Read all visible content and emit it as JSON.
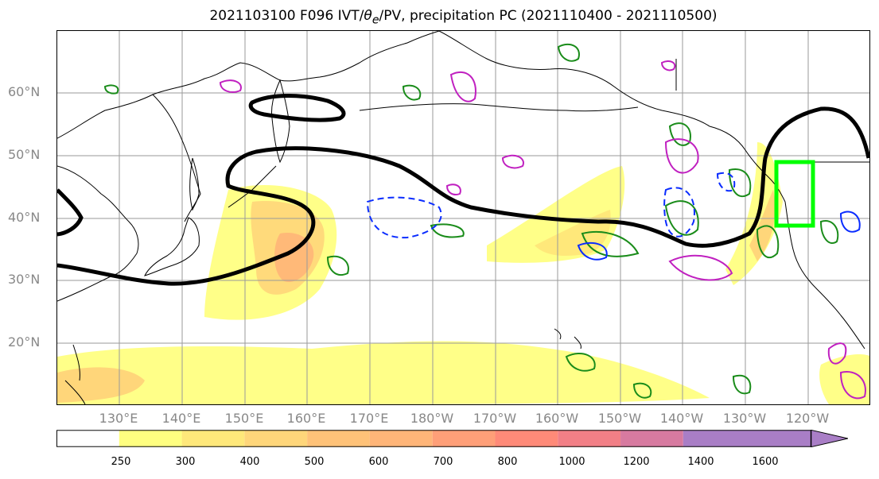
{
  "title": {
    "prefix": "2021103100 F096 IVT/",
    "theta": "θ",
    "sub": "e",
    "suffix": "/PV, precipitation PC (2021110400 - 2021110500)"
  },
  "map": {
    "lat_labels": [
      "60°N",
      "50°N",
      "40°N",
      "30°N",
      "20°N"
    ],
    "lon_labels": [
      "130°E",
      "140°E",
      "150°E",
      "160°E",
      "170°E",
      "180°W",
      "170°W",
      "160°W",
      "150°W",
      "140°W",
      "130°W",
      "120°W"
    ],
    "colors": {
      "jet_contour": "#000000",
      "green_contour": "#1a8c1a",
      "blue_contour": "#0a2cff",
      "magenta_contour": "#c020c0",
      "target_box": "#00ff00",
      "gridline": "#9a9a9a",
      "coastline": "#000000"
    }
  },
  "colorbar": {
    "ticks": [
      "250",
      "300",
      "400",
      "500",
      "600",
      "700",
      "800",
      "1000",
      "1200",
      "1400",
      "1600"
    ],
    "colors": [
      "#ffffff",
      "#ffff80",
      "#ffe87a",
      "#ffd67a",
      "#ffc278",
      "#ffb578",
      "#ff9f78",
      "#ff8a78",
      "#f27f86",
      "#d77aa0",
      "#a97ec6"
    ]
  }
}
